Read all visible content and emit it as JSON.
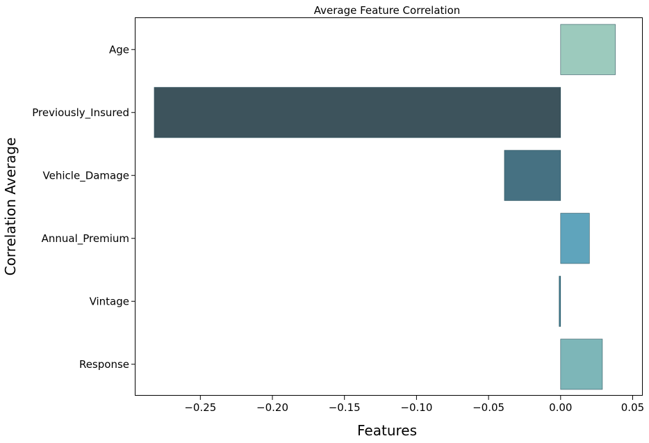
{
  "chart_data": {
    "type": "bar",
    "orientation": "horizontal",
    "title": "Average Feature Correlation",
    "xlabel": "Features",
    "ylabel": "Correlation Average",
    "xlim": [
      -0.295,
      0.057
    ],
    "grid": false,
    "legend": "none",
    "categories": [
      "Age",
      "Previously_Insured",
      "Vehicle_Damage",
      "Annual_Premium",
      "Vintage",
      "Response"
    ],
    "values": [
      0.038,
      -0.282,
      -0.039,
      0.02,
      -0.001,
      0.029
    ],
    "colors": [
      "#9ccabd",
      "#3d535c",
      "#467182",
      "#5fa4bc",
      "#3f7c90",
      "#7db6b8"
    ],
    "edge_color": "#2f5560",
    "x_ticks": [
      {
        "value": -0.25,
        "label": "−0.25"
      },
      {
        "value": -0.2,
        "label": "−0.20"
      },
      {
        "value": -0.15,
        "label": "−0.15"
      },
      {
        "value": -0.1,
        "label": "−0.10"
      },
      {
        "value": -0.05,
        "label": "−0.05"
      },
      {
        "value": 0.0,
        "label": "0.00"
      },
      {
        "value": 0.05,
        "label": "0.05"
      }
    ]
  }
}
